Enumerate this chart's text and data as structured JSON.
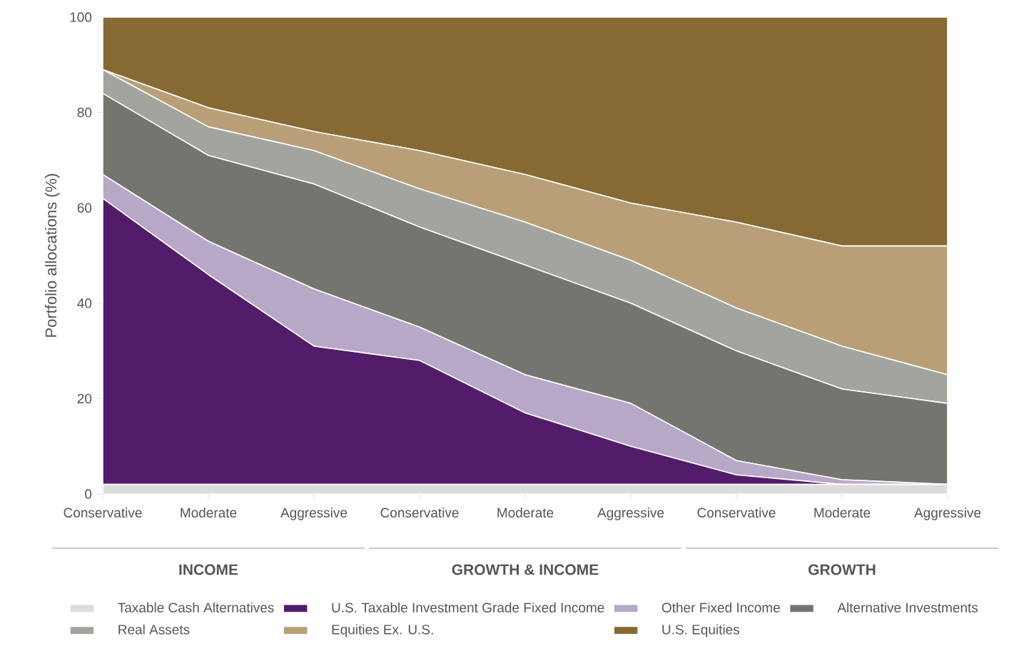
{
  "chart_data": {
    "type": "area",
    "stacked": true,
    "ylabel": "Portfolio allocations (%)",
    "categories": [
      "Conservative",
      "Moderate",
      "Aggressive",
      "Conservative",
      "Moderate",
      "Aggressive",
      "Conservative",
      "Moderate",
      "Aggressive"
    ],
    "ylim": [
      0,
      100
    ],
    "yticks": [
      0,
      20,
      40,
      60,
      80,
      100
    ],
    "grid": false,
    "legend": "bottom",
    "annotations": [
      "INCOME",
      "GROWTH & INCOME",
      "GROWTH"
    ],
    "series": [
      {
        "name": "Taxable Cash Alternatives",
        "color": "#dcdcdc",
        "values": [
          2,
          2,
          2,
          2,
          2,
          2,
          2,
          2,
          2
        ]
      },
      {
        "name": "U.S. Taxable Investment Grade Fixed Income",
        "color": "#521c6a",
        "values": [
          60,
          44,
          29,
          26,
          15,
          8,
          2,
          0,
          0
        ]
      },
      {
        "name": "Other Fixed Income",
        "color": "#b8a8c8",
        "values": [
          5,
          7,
          12,
          7,
          8,
          9,
          3,
          1,
          0
        ]
      },
      {
        "name": "Alternative Investments",
        "color": "#74756f",
        "values": [
          17,
          18,
          22,
          21,
          23,
          21,
          23,
          19,
          17
        ]
      },
      {
        "name": "Real Assets",
        "color": "#a3a49e",
        "values": [
          5,
          6,
          7,
          8,
          9,
          9,
          9,
          9,
          6
        ]
      },
      {
        "name": "Equities Ex. U.S.",
        "color": "#b89f78",
        "values": [
          0,
          4,
          4,
          8,
          10,
          12,
          18,
          21,
          27
        ]
      },
      {
        "name": "U.S. Equities",
        "color": "#876a33",
        "values": [
          11,
          19,
          24,
          28,
          33,
          39,
          43,
          48,
          48
        ]
      }
    ]
  }
}
